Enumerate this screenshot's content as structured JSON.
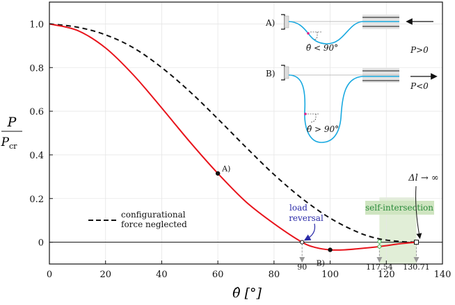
{
  "chart_data": {
    "type": "line",
    "xlabel": "θ̂ [°]",
    "ylabel_num": "P",
    "ylabel_den": "P",
    "ylabel_den_sub": "cr",
    "xlim": [
      0,
      140
    ],
    "ylim": [
      -0.1,
      1.1
    ],
    "x_ticks": [
      0,
      20,
      40,
      60,
      80,
      100,
      120,
      140
    ],
    "x_tick_labels": [
      "0",
      "20",
      "40",
      "60",
      "80",
      "100",
      "120",
      "140"
    ],
    "y_ticks": [
      0,
      0.2,
      0.4,
      0.6,
      0.8,
      1.0
    ],
    "y_tick_labels": [
      "0",
      "0.2",
      "0.4",
      "0.6",
      "0.8",
      "1.0"
    ],
    "grid": true,
    "series": [
      {
        "style": "solid",
        "color": "#e8141c",
        "x": [
          0,
          10,
          20,
          30,
          40,
          50,
          60,
          70,
          80,
          90,
          95,
          100,
          105,
          110,
          117.54,
          125,
          130.71
        ],
        "y": [
          1.0,
          0.97,
          0.89,
          0.765,
          0.615,
          0.46,
          0.315,
          0.185,
          0.085,
          0.0,
          -0.025,
          -0.035,
          -0.035,
          -0.03,
          -0.02,
          -0.007,
          0.0
        ]
      },
      {
        "name": "configurational force neglected",
        "style": "dashed",
        "color": "#111111",
        "x": [
          0,
          10,
          20,
          30,
          40,
          50,
          60,
          70,
          80,
          90,
          100,
          110,
          117.54,
          125,
          130.71
        ],
        "y": [
          1.0,
          0.985,
          0.95,
          0.89,
          0.8,
          0.69,
          0.565,
          0.435,
          0.31,
          0.2,
          0.11,
          0.045,
          0.015,
          0.003,
          0.0
        ]
      }
    ],
    "legend": {
      "label": "configurational force neglected",
      "placement": "lower-left"
    },
    "zero_line": true,
    "markers": [
      {
        "label": "A)",
        "x": 60,
        "y": 0.315
      },
      {
        "label": "B)",
        "x": 100,
        "y": -0.035
      }
    ],
    "vertical_markers": [
      {
        "x": 90,
        "label": "90"
      },
      {
        "x": 117.54,
        "label": "117.54"
      },
      {
        "x": 130.71,
        "label": "130.71"
      }
    ],
    "annotations": {
      "load_reversal": [
        "load",
        "reversal"
      ],
      "self_intersection": "self-intersection",
      "delta_l": "Δl → ∞"
    },
    "shaded_region": {
      "x": [
        117.54,
        130.71
      ],
      "color": "#dcebd0"
    },
    "colors": {
      "accent_red": "#e8141c",
      "inset_blue": "#19a9e0",
      "inset_magenta": "#e0218a",
      "annotation_blue": "#2a2aa8",
      "green": "#3bb34a"
    },
    "inset": {
      "panel_a": {
        "tag": "A)",
        "force": "P>0",
        "angle": "θ̂ < 90°"
      },
      "panel_b": {
        "tag": "B)",
        "force": "P<0",
        "angle": "θ̂ > 90°"
      }
    }
  }
}
